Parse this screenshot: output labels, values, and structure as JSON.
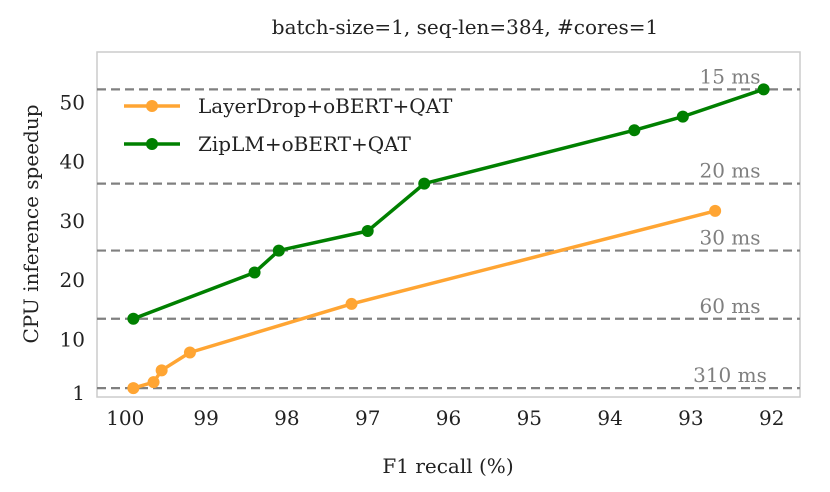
{
  "chart_data": {
    "type": "line",
    "title": "batch-size=1, seq-len=384, #cores=1",
    "xlabel": "F1 recall (%)",
    "ylabel": "CPU inference speedup",
    "xlim": [
      100.35,
      91.65
    ],
    "ylim": [
      0.3,
      58.5
    ],
    "x_ticks": [
      100,
      99,
      98,
      97,
      96,
      95,
      94,
      93,
      92
    ],
    "y_ticks": [
      1,
      10,
      20,
      30,
      40,
      50
    ],
    "grid": false,
    "legend_position": "upper-left",
    "series": [
      {
        "name": "LayerDrop+oBERT+QAT",
        "color": "#ffa533",
        "points": [
          {
            "x": 99.9,
            "y": 1.8
          },
          {
            "x": 99.65,
            "y": 2.8
          },
          {
            "x": 99.55,
            "y": 4.8
          },
          {
            "x": 99.2,
            "y": 7.8
          },
          {
            "x": 97.2,
            "y": 16.0
          },
          {
            "x": 92.7,
            "y": 31.7
          }
        ]
      },
      {
        "name": "ZipLM+oBERT+QAT",
        "color": "#008000",
        "points": [
          {
            "x": 99.9,
            "y": 13.5
          },
          {
            "x": 98.4,
            "y": 21.3
          },
          {
            "x": 98.1,
            "y": 25.0
          },
          {
            "x": 97.0,
            "y": 28.3
          },
          {
            "x": 96.3,
            "y": 36.3
          },
          {
            "x": 93.7,
            "y": 45.3
          },
          {
            "x": 93.1,
            "y": 47.6
          },
          {
            "x": 92.1,
            "y": 52.2
          }
        ]
      }
    ],
    "reference_lines": [
      {
        "y": 52.2,
        "label": "15 ms"
      },
      {
        "y": 36.3,
        "label": "20 ms"
      },
      {
        "y": 25.0,
        "label": "30 ms"
      },
      {
        "y": 13.5,
        "label": "60 ms"
      },
      {
        "y": 1.8,
        "label": "310 ms"
      }
    ],
    "reference_color": "#808080"
  }
}
